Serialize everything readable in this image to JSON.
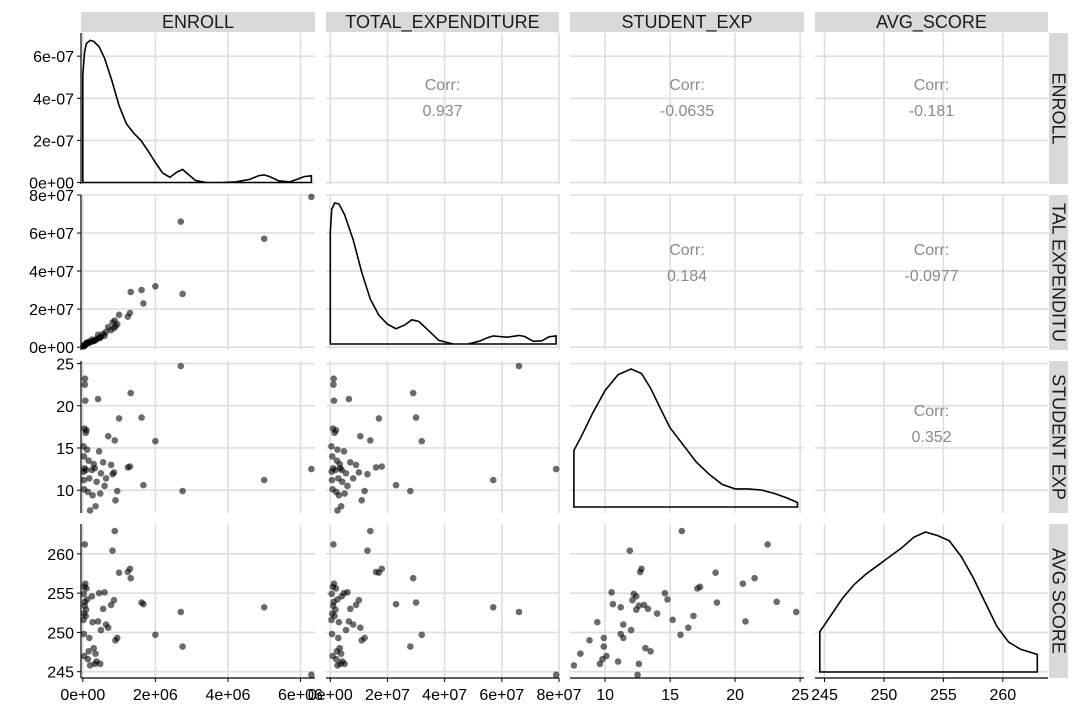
{
  "chart_data": {
    "type": "scatter-matrix",
    "variables": [
      "ENROLL",
      "TOTAL_EXPENDITURE",
      "STUDENT_EXP",
      "AVG_SCORE"
    ],
    "row_strip_labels": [
      "ENROLL",
      "TAL_EXPENDITU",
      "STUDENT_EXP",
      "AVG_SCORE"
    ],
    "column_x_ticks": [
      [
        "0e+00",
        "2e+06",
        "4e+06",
        "6e+06"
      ],
      [
        "0e+00",
        "2e+07",
        "4e+07",
        "6e+07",
        "8e+07"
      ],
      [
        "10",
        "15",
        "20",
        "25"
      ],
      [
        "245",
        "250",
        "255",
        "260"
      ]
    ],
    "row_y_ticks": [
      [
        "0e+00",
        "2e-07",
        "4e-07",
        "6e-07"
      ],
      [
        "0e+00",
        "2e+07",
        "4e+07",
        "6e+07",
        "8e+07"
      ],
      [
        "10",
        "15",
        "20",
        "25"
      ],
      [
        "245",
        "250",
        "255",
        "260"
      ]
    ],
    "ranges": {
      "ENROLL": [
        -50000,
        6400000
      ],
      "TOTAL_EXPENDITURE": [
        -1500000,
        80000000
      ],
      "STUDENT_EXP": [
        7.3,
        25.3
      ],
      "AVG_SCORE": [
        244.2,
        263.8
      ],
      "ENROLL_density": [
        -7e-09,
        7.1e-07
      ]
    },
    "correlations": [
      {
        "row": 0,
        "col": 1,
        "label": "Corr:",
        "value": "0.937"
      },
      {
        "row": 0,
        "col": 2,
        "label": "Corr:",
        "value": "-0.0635"
      },
      {
        "row": 0,
        "col": 3,
        "label": "Corr:",
        "value": "-0.181"
      },
      {
        "row": 1,
        "col": 2,
        "label": "Corr:",
        "value": "0.184"
      },
      {
        "row": 1,
        "col": 3,
        "label": "Corr:",
        "value": "-0.0977"
      },
      {
        "row": 2,
        "col": 3,
        "label": "Corr:",
        "value": "0.352"
      }
    ],
    "points": [
      {
        "ENROLL": 6300000,
        "TOTAL_EXPENDITURE": 79000000,
        "STUDENT_EXP": 12.5,
        "AVG_SCORE": 244.6
      },
      {
        "ENROLL": 5000000,
        "TOTAL_EXPENDITURE": 57000000,
        "STUDENT_EXP": 11.2,
        "AVG_SCORE": 253.2
      },
      {
        "ENROLL": 2700000,
        "TOTAL_EXPENDITURE": 66000000,
        "STUDENT_EXP": 24.7,
        "AVG_SCORE": 252.6
      },
      {
        "ENROLL": 2750000,
        "TOTAL_EXPENDITURE": 28000000,
        "STUDENT_EXP": 9.9,
        "AVG_SCORE": 248.2
      },
      {
        "ENROLL": 2000000,
        "TOTAL_EXPENDITURE": 32000000,
        "STUDENT_EXP": 15.8,
        "AVG_SCORE": 249.7
      },
      {
        "ENROLL": 1620000,
        "TOTAL_EXPENDITURE": 30000000,
        "STUDENT_EXP": 18.6,
        "AVG_SCORE": 253.8
      },
      {
        "ENROLL": 1670000,
        "TOTAL_EXPENDITURE": 23000000,
        "STUDENT_EXP": 10.6,
        "AVG_SCORE": 253.6
      },
      {
        "ENROLL": 1320000,
        "TOTAL_EXPENDITURE": 29000000,
        "STUDENT_EXP": 21.5,
        "AVG_SCORE": 256.9
      },
      {
        "ENROLL": 1300000,
        "TOTAL_EXPENDITURE": 18000000,
        "STUDENT_EXP": 12.8,
        "AVG_SCORE": 258.1
      },
      {
        "ENROLL": 1240000,
        "TOTAL_EXPENDITURE": 16000000,
        "STUDENT_EXP": 12.7,
        "AVG_SCORE": 257.7
      },
      {
        "ENROLL": 1000000,
        "TOTAL_EXPENDITURE": 17000000,
        "STUDENT_EXP": 18.5,
        "AVG_SCORE": 257.6
      },
      {
        "ENROLL": 880000,
        "TOTAL_EXPENDITURE": 14000000,
        "STUDENT_EXP": 15.9,
        "AVG_SCORE": 262.9
      },
      {
        "ENROLL": 820000,
        "TOTAL_EXPENDITURE": 13000000,
        "STUDENT_EXP": 11.9,
        "AVG_SCORE": 260.4
      },
      {
        "ENROLL": 950000,
        "TOTAL_EXPENDITURE": 12000000,
        "STUDENT_EXP": 9.9,
        "AVG_SCORE": 249.3
      },
      {
        "ENROLL": 900000,
        "TOTAL_EXPENDITURE": 11000000,
        "STUDENT_EXP": 8.8,
        "AVG_SCORE": 249.0
      },
      {
        "ENROLL": 860000,
        "TOTAL_EXPENDITURE": 10000000,
        "STUDENT_EXP": 12.1,
        "AVG_SCORE": 254.1
      },
      {
        "ENROLL": 780000,
        "TOTAL_EXPENDITURE": 9000000,
        "STUDENT_EXP": 13.0,
        "AVG_SCORE": 253.5
      },
      {
        "ENROLL": 700000,
        "TOTAL_EXPENDITURE": 10500000,
        "STUDENT_EXP": 16.4,
        "AVG_SCORE": 250.6
      },
      {
        "ENROLL": 640000,
        "TOTAL_EXPENDITURE": 8000000,
        "STUDENT_EXP": 11.4,
        "AVG_SCORE": 251.0
      },
      {
        "ENROLL": 600000,
        "TOTAL_EXPENDITURE": 6000000,
        "STUDENT_EXP": 10.5,
        "AVG_SCORE": 255.1
      },
      {
        "ENROLL": 560000,
        "TOTAL_EXPENDITURE": 7000000,
        "STUDENT_EXP": 13.3,
        "AVG_SCORE": 253.0
      },
      {
        "ENROLL": 500000,
        "TOTAL_EXPENDITURE": 5500000,
        "STUDENT_EXP": 12.0,
        "AVG_SCORE": 250.3
      },
      {
        "ENROLL": 480000,
        "TOTAL_EXPENDITURE": 5000000,
        "STUDENT_EXP": 9.6,
        "AVG_SCORE": 246.0
      },
      {
        "ENROLL": 450000,
        "TOTAL_EXPENDITURE": 4800000,
        "STUDENT_EXP": 14.6,
        "AVG_SCORE": 255.0
      },
      {
        "ENROLL": 420000,
        "TOTAL_EXPENDITURE": 6500000,
        "STUDENT_EXP": 20.8,
        "AVG_SCORE": 251.4
      },
      {
        "ENROLL": 380000,
        "TOTAL_EXPENDITURE": 4200000,
        "STUDENT_EXP": 11.0,
        "AVG_SCORE": 246.3
      },
      {
        "ENROLL": 350000,
        "TOTAL_EXPENDITURE": 3800000,
        "STUDENT_EXP": 8.1,
        "AVG_SCORE": 247.3
      },
      {
        "ENROLL": 330000,
        "TOTAL_EXPENDITURE": 3500000,
        "STUDENT_EXP": 12.6,
        "AVG_SCORE": 246.0
      },
      {
        "ENROLL": 300000,
        "TOTAL_EXPENDITURE": 3300000,
        "STUDENT_EXP": 13.1,
        "AVG_SCORE": 248.0
      },
      {
        "ENROLL": 270000,
        "TOTAL_EXPENDITURE": 3000000,
        "STUDENT_EXP": 9.4,
        "AVG_SCORE": 251.3
      },
      {
        "ENROLL": 250000,
        "TOTAL_EXPENDITURE": 4000000,
        "STUDENT_EXP": 12.4,
        "AVG_SCORE": 254.6
      },
      {
        "ENROLL": 200000,
        "TOTAL_EXPENDITURE": 2500000,
        "STUDENT_EXP": 7.6,
        "AVG_SCORE": 245.8
      },
      {
        "ENROLL": 180000,
        "TOTAL_EXPENDITURE": 2800000,
        "STUDENT_EXP": 11.4,
        "AVG_SCORE": 249.3
      },
      {
        "ENROLL": 160000,
        "TOTAL_EXPENDITURE": 2300000,
        "STUDENT_EXP": 13.5,
        "AVG_SCORE": 247.6
      },
      {
        "ENROLL": 140000,
        "TOTAL_EXPENDITURE": 2100000,
        "STUDENT_EXP": 9.8,
        "AVG_SCORE": 246.6
      },
      {
        "ENROLL": 120000,
        "TOTAL_EXPENDITURE": 2500000,
        "STUDENT_EXP": 14.8,
        "AVG_SCORE": 254.2
      },
      {
        "ENROLL": 100000,
        "TOTAL_EXPENDITURE": 2000000,
        "STUDENT_EXP": 17.1,
        "AVG_SCORE": 255.6
      },
      {
        "ENROLL": 90000,
        "TOTAL_EXPENDITURE": 1800000,
        "STUDENT_EXP": 12.4,
        "AVG_SCORE": 252.9
      },
      {
        "ENROLL": 80000,
        "TOTAL_EXPENDITURE": 1500000,
        "STUDENT_EXP": 16.8,
        "AVG_SCORE": 252.1
      },
      {
        "ENROLL": 70000,
        "TOTAL_EXPENDITURE": 1300000,
        "STUDENT_EXP": 20.6,
        "AVG_SCORE": 256.2
      },
      {
        "ENROLL": 60000,
        "TOTAL_EXPENDITURE": 1200000,
        "STUDENT_EXP": 23.2,
        "AVG_SCORE": 253.9
      },
      {
        "ENROLL": 55000,
        "TOTAL_EXPENDITURE": 1100000,
        "STUDENT_EXP": 22.5,
        "AVG_SCORE": 261.2
      },
      {
        "ENROLL": 50000,
        "TOTAL_EXPENDITURE": 1000000,
        "STUDENT_EXP": 12.6,
        "AVG_SCORE": 253.4
      },
      {
        "ENROLL": 45000,
        "TOTAL_EXPENDITURE": 900000,
        "STUDENT_EXP": 17.3,
        "AVG_SCORE": 255.8
      },
      {
        "ENROLL": 40000,
        "TOTAL_EXPENDITURE": 800000,
        "STUDENT_EXP": 10.1,
        "AVG_SCORE": 247.0
      },
      {
        "ENROLL": 35000,
        "TOTAL_EXPENDITURE": 700000,
        "STUDENT_EXP": 14.0,
        "AVG_SCORE": 252.4
      },
      {
        "ENROLL": 30000,
        "TOTAL_EXPENDITURE": 600000,
        "STUDENT_EXP": 11.2,
        "AVG_SCORE": 249.8
      },
      {
        "ENROLL": 25000,
        "TOTAL_EXPENDITURE": 500000,
        "STUDENT_EXP": 12.2,
        "AVG_SCORE": 254.9
      },
      {
        "ENROLL": 20000,
        "TOTAL_EXPENDITURE": 400000,
        "STUDENT_EXP": 15.2,
        "AVG_SCORE": 251.6
      }
    ],
    "diagonal_density_curves": [
      {
        "variable": "ENROLL",
        "x": [
          0,
          50000,
          100000,
          200000,
          300000,
          450000,
          600000,
          800000,
          1000000,
          1200000,
          1400000,
          1600000,
          1800000,
          2000000,
          2200000,
          2400000,
          2600000,
          2750000,
          2900000,
          3100000,
          3400000,
          3800000,
          4200000,
          4600000,
          4850000,
          5000000,
          5150000,
          5400000,
          5700000,
          5900000,
          6100000,
          6300000
        ],
        "y": [
          5.1e-07,
          6.2e-07,
          6.6e-07,
          6.75e-07,
          6.7e-07,
          6.45e-07,
          5.9e-07,
          4.85e-07,
          3.65e-07,
          2.8e-07,
          2.35e-07,
          2e-07,
          1.5e-07,
          9.5e-08,
          4.5e-08,
          2.5e-08,
          5e-08,
          6.2e-08,
          4e-08,
          1e-08,
          0.0,
          0.0,
          3e-09,
          1.5e-08,
          3.3e-08,
          3.6e-08,
          2.8e-08,
          8e-09,
          3e-09,
          1.5e-08,
          2.8e-08,
          3.2e-08
        ]
      },
      {
        "variable": "TOTAL_EXPENDITURE",
        "x": [
          0,
          500000,
          1500000,
          3000000,
          5000000,
          8000000,
          11000000,
          14000000,
          17000000,
          20000000,
          23000000,
          26000000,
          28500000,
          31000000,
          34000000,
          38000000,
          43000000,
          48000000,
          52000000,
          55000000,
          57000000,
          59000000,
          62000000,
          64000000,
          66000000,
          68000000,
          71000000,
          74000000,
          76500000,
          79000000
        ],
        "y": [
          6.2e-08,
          7.5e-08,
          7.85e-08,
          7.8e-08,
          7.2e-08,
          5.8e-08,
          4e-08,
          2.5e-08,
          1.6e-08,
          1.1e-08,
          8.5e-09,
          1.05e-08,
          1.35e-08,
          1.25e-08,
          8e-09,
          2e-09,
          0.0,
          0.0,
          1.5e-09,
          3.5e-09,
          4.5e-09,
          4.2e-09,
          3.8e-09,
          4.3e-09,
          4.8e-09,
          4.2e-09,
          1.5e-09,
          1.8e-09,
          4e-09,
          4.5e-09
        ]
      },
      {
        "variable": "STUDENT_EXP",
        "x": [
          7.6,
          8.2,
          9.0,
          10.0,
          11.0,
          12.0,
          12.8,
          13.5,
          14.3,
          15.0,
          16.0,
          17.0,
          18.0,
          19.0,
          20.0,
          21.0,
          22.0,
          23.0,
          24.0,
          24.8
        ],
        "y": [
          0.05,
          0.063,
          0.082,
          0.103,
          0.117,
          0.122,
          0.118,
          0.105,
          0.086,
          0.07,
          0.055,
          0.04,
          0.029,
          0.02,
          0.016,
          0.016,
          0.015,
          0.012,
          0.008,
          0.004
        ]
      },
      {
        "variable": "AVG_SCORE",
        "x": [
          244.6,
          245.5,
          246.5,
          247.5,
          248.5,
          249.5,
          250.5,
          251.5,
          252.5,
          253.5,
          254.0,
          254.5,
          255.5,
          256.5,
          257.5,
          258.5,
          259.5,
          260.5,
          261.5,
          262.9
        ],
        "y": [
          0.023,
          0.032,
          0.042,
          0.05,
          0.056,
          0.061,
          0.066,
          0.071,
          0.077,
          0.08,
          0.079,
          0.078,
          0.075,
          0.066,
          0.054,
          0.04,
          0.026,
          0.017,
          0.013,
          0.01
        ]
      }
    ]
  }
}
